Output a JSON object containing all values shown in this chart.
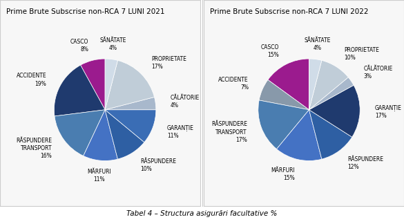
{
  "title1": "Prime Brute Subscrise non-RCA 7 LUNI 2021",
  "title2": "Prime Brute Subscrise non-RCA 7 LUNI 2022",
  "caption": "Tabel 4 – Structura asigurări facultative %",
  "labels1": [
    "CASCO",
    "ACCIDENTE",
    "RĂSPUNDERE\nTRANSPORT",
    "MĂRFURI",
    "RĂSPUNDERE",
    "GARANȚIE",
    "CĂLĂTORIE",
    "PROPRIETATE",
    "SĂNĂTATE"
  ],
  "labels2": [
    "CASCO",
    "ACCIDENTE",
    "RĂSPUNDERE\nTRANSPORT",
    "MĂRFURI",
    "RĂSPUNDERE",
    "GARANȚIE",
    "CĂLĂTORIE",
    "PROPRIETATE",
    "SĂNĂTATE"
  ],
  "values1": [
    8,
    19,
    16,
    11,
    10,
    11,
    4,
    17,
    4
  ],
  "values2": [
    15,
    7,
    17,
    15,
    12,
    17,
    3,
    10,
    4
  ],
  "colors1": [
    "#9B1B8E",
    "#1F3A6E",
    "#4A7DB0",
    "#4472C4",
    "#2E5FA3",
    "#3A6DB5",
    "#A8B8CC",
    "#C0CDD8",
    "#D0DCE8"
  ],
  "colors2": [
    "#9B1B8E",
    "#8899AA",
    "#4A7DB0",
    "#4472C4",
    "#2E5FA3",
    "#1F3A6E",
    "#A8B8CC",
    "#C0CDD8",
    "#D0DCE8"
  ],
  "background": "#ffffff",
  "panel_bg": "#f7f7f7",
  "border_color": "#cccccc",
  "text_color": "#000000",
  "title_fontsize": 7.5,
  "label_fontsize": 5.5,
  "caption_fontsize": 7.5
}
